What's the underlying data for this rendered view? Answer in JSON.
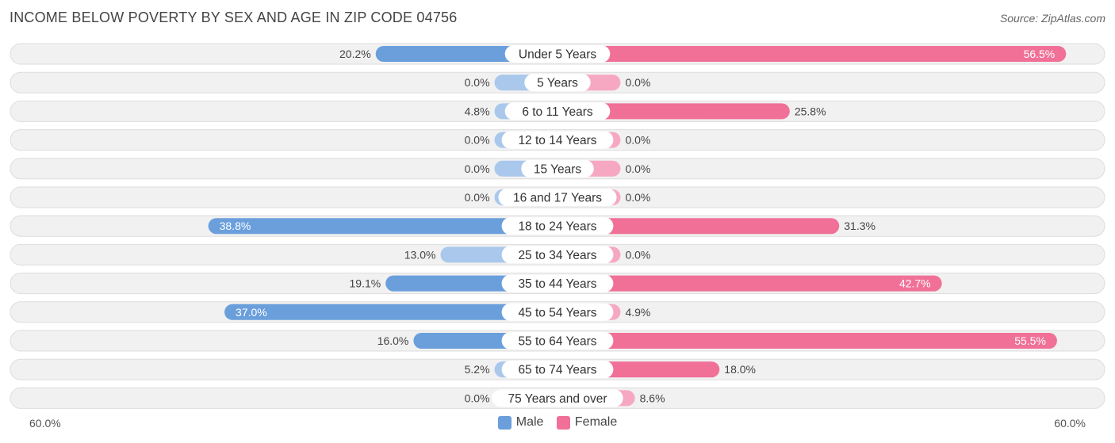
{
  "header": {
    "title": "INCOME BELOW POVERTY BY SEX AND AGE IN ZIP CODE 04756",
    "source": "Source: ZipAtlas.com"
  },
  "axis": {
    "left_label": "60.0%",
    "right_label": "60.0%"
  },
  "legend": {
    "male": "Male",
    "female": "Female"
  },
  "colors": {
    "male_strong": "#6a9fdc",
    "male_light": "#a9c8ec",
    "female_strong": "#f07098",
    "female_light": "#f6a8c2",
    "row_bg": "#f1f1f1",
    "row_border": "#dddddd"
  },
  "chart_data": {
    "type": "bar",
    "orientation": "horizontal-diverging",
    "title": "INCOME BELOW POVERTY BY SEX AND AGE IN ZIP CODE 04756",
    "xlim": [
      -60,
      60
    ],
    "categories": [
      "Under 5 Years",
      "5 Years",
      "6 to 11 Years",
      "12 to 14 Years",
      "15 Years",
      "16 and 17 Years",
      "18 to 24 Years",
      "25 to 34 Years",
      "35 to 44 Years",
      "45 to 54 Years",
      "55 to 64 Years",
      "65 to 74 Years",
      "75 Years and over"
    ],
    "series": [
      {
        "name": "Male",
        "values": [
          20.2,
          0.0,
          4.8,
          0.0,
          0.0,
          0.0,
          38.8,
          13.0,
          19.1,
          37.0,
          16.0,
          5.2,
          0.0
        ],
        "labels": [
          "20.2%",
          "0.0%",
          "4.8%",
          "0.0%",
          "0.0%",
          "0.0%",
          "38.8%",
          "13.0%",
          "19.1%",
          "37.0%",
          "16.0%",
          "5.2%",
          "0.0%"
        ]
      },
      {
        "name": "Female",
        "values": [
          56.5,
          0.0,
          25.8,
          0.0,
          0.0,
          0.0,
          31.3,
          0.0,
          42.7,
          4.9,
          55.5,
          18.0,
          8.6
        ],
        "labels": [
          "56.5%",
          "0.0%",
          "25.8%",
          "0.0%",
          "0.0%",
          "0.0%",
          "31.3%",
          "0.0%",
          "42.7%",
          "4.9%",
          "55.5%",
          "18.0%",
          "8.6%"
        ]
      }
    ],
    "legend_position": "bottom-center"
  }
}
